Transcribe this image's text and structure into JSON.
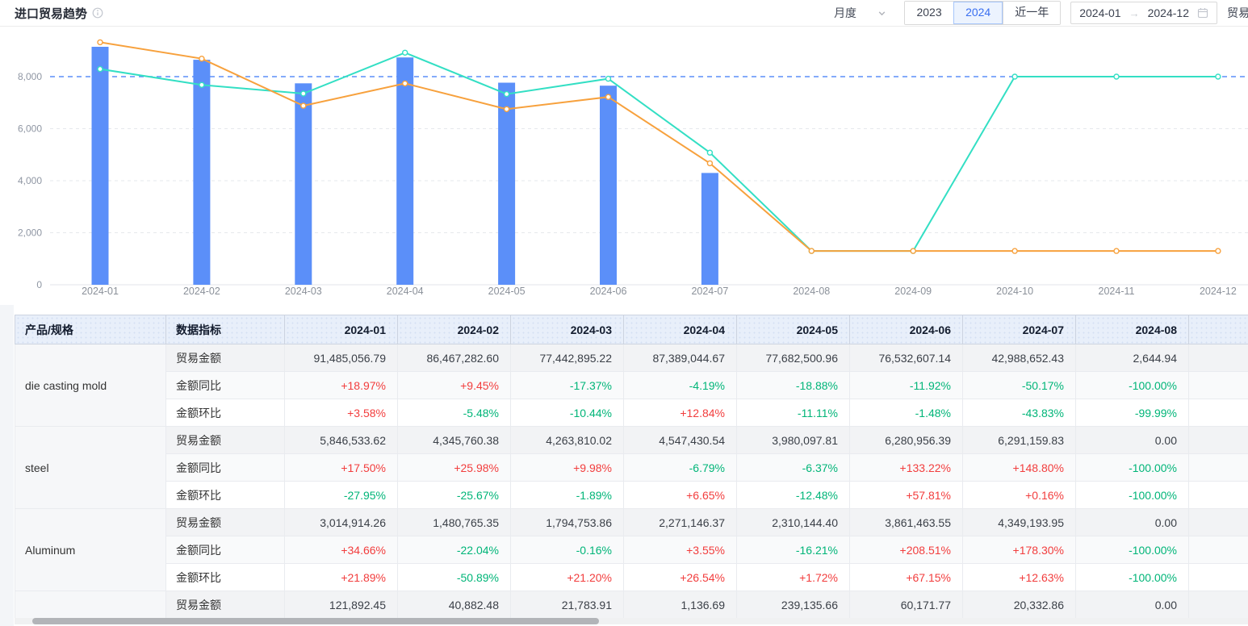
{
  "header": {
    "title": "进口贸易趋势",
    "controls": {
      "period_select": "月度",
      "year_tabs": [
        "2023",
        "2024",
        "近一年"
      ],
      "active_year": "2024",
      "date_start": "2024-01",
      "date_end": "2024-12",
      "metric_select": "贸易"
    }
  },
  "chart_data": {
    "type": "bar+line",
    "title": "进口贸易趋势",
    "categories": [
      "2024-01",
      "2024-02",
      "2024-03",
      "2024-04",
      "2024-05",
      "2024-06",
      "2024-07",
      "2024-08",
      "2024-09",
      "2024-10",
      "2024-11",
      "2024-12"
    ],
    "series": [
      {
        "name": "amount-bars",
        "type": "bar",
        "color": "#5b8ff9",
        "values": [
          9148,
          8647,
          7744,
          8739,
          7768,
          7653,
          4299,
          null,
          null,
          null,
          null,
          null
        ]
      },
      {
        "name": "teal-line",
        "type": "line",
        "color": "#33dfc4",
        "values": [
          8290,
          7680,
          7350,
          8920,
          7330,
          7920,
          5080,
          1300,
          1300,
          8000,
          8000,
          8000
        ]
      },
      {
        "name": "orange-line",
        "type": "line",
        "color": "#f7a13d",
        "values": [
          9320,
          8690,
          6880,
          7740,
          6750,
          7220,
          4670,
          1300,
          1300,
          1300,
          1300,
          1300
        ]
      }
    ],
    "ylim": [
      0,
      9600
    ],
    "yticks": [
      0,
      2000,
      4000,
      6000,
      8000
    ],
    "markline": 8000,
    "markline_color": "#5b8ff9",
    "grid": true,
    "legend": "none"
  },
  "table": {
    "col_product": "产品/规格",
    "col_metric": "数据指标",
    "months": [
      "2024-01",
      "2024-02",
      "2024-03",
      "2024-04",
      "2024-05",
      "2024-06",
      "2024-07",
      "2024-08"
    ],
    "products": [
      {
        "name": "die casting mold",
        "rows": [
          {
            "label": "贸易金额",
            "values": [
              "91,485,056.79",
              "86,467,282.60",
              "77,442,895.22",
              "87,389,044.67",
              "77,682,500.96",
              "76,532,607.14",
              "42,988,652.43",
              "2,644.94"
            ]
          },
          {
            "label": "金额同比",
            "values": [
              "+18.97%",
              "+9.45%",
              "-17.37%",
              "-4.19%",
              "-18.88%",
              "-11.92%",
              "-50.17%",
              "-100.00%"
            ]
          },
          {
            "label": "金额环比",
            "values": [
              "+3.58%",
              "-5.48%",
              "-10.44%",
              "+12.84%",
              "-11.11%",
              "-1.48%",
              "-43.83%",
              "-99.99%"
            ]
          }
        ]
      },
      {
        "name": "steel",
        "rows": [
          {
            "label": "贸易金额",
            "values": [
              "5,846,533.62",
              "4,345,760.38",
              "4,263,810.02",
              "4,547,430.54",
              "3,980,097.81",
              "6,280,956.39",
              "6,291,159.83",
              "0.00"
            ]
          },
          {
            "label": "金额同比",
            "values": [
              "+17.50%",
              "+25.98%",
              "+9.98%",
              "-6.79%",
              "-6.37%",
              "+133.22%",
              "+148.80%",
              "-100.00%"
            ]
          },
          {
            "label": "金额环比",
            "values": [
              "-27.95%",
              "-25.67%",
              "-1.89%",
              "+6.65%",
              "-12.48%",
              "+57.81%",
              "+0.16%",
              "-100.00%"
            ]
          }
        ]
      },
      {
        "name": "Aluminum",
        "rows": [
          {
            "label": "贸易金额",
            "values": [
              "3,014,914.26",
              "1,480,765.35",
              "1,794,753.86",
              "2,271,146.37",
              "2,310,144.40",
              "3,861,463.55",
              "4,349,193.95",
              "0.00"
            ]
          },
          {
            "label": "金额同比",
            "values": [
              "+34.66%",
              "-22.04%",
              "-0.16%",
              "+3.55%",
              "-16.21%",
              "+208.51%",
              "+178.30%",
              "-100.00%"
            ]
          },
          {
            "label": "金额环比",
            "values": [
              "+21.89%",
              "-50.89%",
              "+21.20%",
              "+26.54%",
              "+1.72%",
              "+67.15%",
              "+12.63%",
              "-100.00%"
            ]
          }
        ]
      },
      {
        "name": "",
        "rows": [
          {
            "label": "贸易金额",
            "values": [
              "121,892.45",
              "40,882.48",
              "21,783.91",
              "1,136.69",
              "239,135.66",
              "60,171.77",
              "20,332.86",
              "0.00"
            ]
          }
        ]
      }
    ]
  }
}
